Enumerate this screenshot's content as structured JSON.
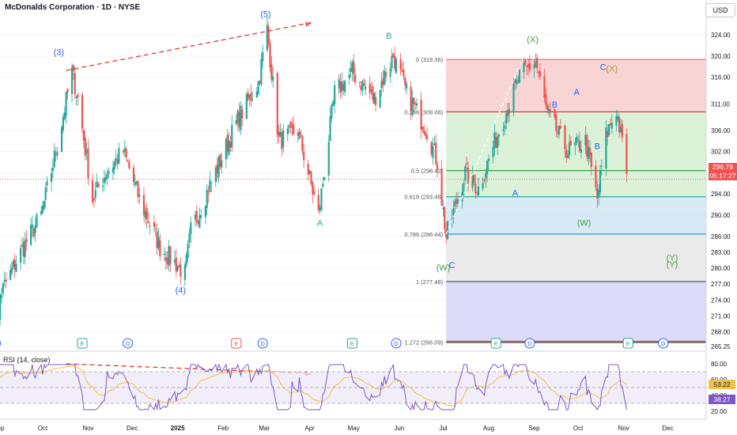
{
  "header": {
    "title": "McDonalds Corporation · 1D · NYSE",
    "currency": "USD"
  },
  "price_tag": {
    "value": "296.79",
    "countdown": "05:17:27"
  },
  "rsi": {
    "title": "RSI (14, close)",
    "value": "38.27",
    "ma_value": "53.22",
    "ticks": [
      "80.00",
      "60.00",
      "40.00",
      "20.00"
    ]
  },
  "colors": {
    "up": "#26a69a",
    "down": "#ef5350",
    "wave": "#2962ff",
    "wave_green": "#43a047",
    "fib_red": "#f7c6c6",
    "fib_green": "#cfeccb",
    "fib_blue": "#c9e3f3",
    "fib_grey": "#e3e3e3",
    "fib_purple": "#cfcff5",
    "rsi": "#7e57c2",
    "rsi_ma": "#f0c14b"
  },
  "chart_data": {
    "type": "candlestick",
    "ylim": [
      265.25,
      327
    ],
    "y_ticks": [
      "324.00",
      "320.00",
      "316.00",
      "311.00",
      "306.00",
      "302.00",
      "298.00",
      "294.00",
      "290.00",
      "286.00",
      "283.00",
      "280.00",
      "277.00",
      "274.00",
      "271.00",
      "268.00",
      "265.25"
    ],
    "x_ticks": [
      "Sep",
      "Oct",
      "Nov",
      "Dec",
      "2025",
      "Feb",
      "Mar",
      "Apr",
      "May",
      "Jun",
      "Jul",
      "Aug",
      "Sep",
      "Oct",
      "Nov",
      "Dec"
    ],
    "last_price": 296.79,
    "waypoints": [
      [
        "2024-08-26",
        263
      ],
      [
        "2024-09-02",
        275
      ],
      [
        "2024-09-16",
        283
      ],
      [
        "2024-09-30",
        290
      ],
      [
        "2024-10-10",
        302
      ],
      [
        "2024-10-21",
        317
      ],
      [
        "2024-10-25",
        312
      ],
      [
        "2024-11-04",
        293
      ],
      [
        "2024-11-13",
        298
      ],
      [
        "2024-11-25",
        302
      ],
      [
        "2024-12-06",
        293
      ],
      [
        "2024-12-20",
        284
      ],
      [
        "2025-01-06",
        279
      ],
      [
        "2025-01-10",
        287
      ],
      [
        "2025-01-22",
        295
      ],
      [
        "2025-02-11",
        308
      ],
      [
        "2025-02-25",
        315
      ],
      [
        "2025-03-03",
        325
      ],
      [
        "2025-03-11",
        304
      ],
      [
        "2025-03-24",
        306
      ],
      [
        "2025-04-07",
        290
      ],
      [
        "2025-04-18",
        313
      ],
      [
        "2025-04-30",
        317
      ],
      [
        "2025-05-15",
        312
      ],
      [
        "2025-05-28",
        320
      ],
      [
        "2025-06-06",
        313
      ],
      [
        "2025-06-20",
        306
      ],
      [
        "2025-06-27",
        300
      ],
      [
        "2025-07-03",
        286
      ],
      [
        "2025-07-16",
        298
      ],
      [
        "2025-07-25",
        295
      ],
      [
        "2025-08-08",
        306
      ],
      [
        "2025-08-22",
        316
      ],
      [
        "2025-09-02",
        319
      ],
      [
        "2025-09-10",
        309
      ],
      [
        "2025-09-24",
        302
      ],
      [
        "2025-10-06",
        304
      ],
      [
        "2025-10-14",
        293
      ],
      [
        "2025-10-20",
        305
      ],
      [
        "2025-10-27",
        310
      ],
      [
        "2025-11-04",
        296.79
      ]
    ],
    "fib_levels": [
      {
        "label": "0 (319.36)",
        "value": 319.36
      },
      {
        "label": "0.236 (309.48)",
        "value": 309.48
      },
      {
        "label": "0.5 (298.42)",
        "value": 298.42
      },
      {
        "label": "0.618 (293.48)",
        "value": 293.48
      },
      {
        "label": "0.786 (286.44)",
        "value": 286.44
      },
      {
        "label": "1 (277.48)",
        "value": 277.48
      },
      {
        "label": "1.272 (266.09)",
        "value": 266.09
      }
    ],
    "wave_labels": [
      {
        "text": "(3)",
        "date": "2024-10-12",
        "price": 320.2,
        "color": "blue"
      },
      {
        "text": "(5)",
        "date": "2025-03-02",
        "price": 327.4,
        "color": "blue"
      },
      {
        "text": "(4)",
        "date": "2025-01-03",
        "price": 275.3,
        "color": "blue"
      },
      {
        "text": "A",
        "date": "2025-04-08",
        "price": 288.0,
        "color": "teal"
      },
      {
        "text": "B",
        "date": "2025-05-25",
        "price": 323.3,
        "color": "teal"
      },
      {
        "text": "C",
        "date": "2025-07-07",
        "price": 280.0,
        "color": "blue"
      },
      {
        "text": "(W)",
        "date": "2025-07-01",
        "price": 279.6,
        "color": "green"
      },
      {
        "text": "(X)",
        "date": "2025-08-31",
        "price": 322.6,
        "color": "green"
      },
      {
        "text": "A",
        "date": "2025-08-19",
        "price": 293.7,
        "color": "blue"
      },
      {
        "text": "B",
        "date": "2025-09-15",
        "price": 310.3,
        "color": "blue"
      },
      {
        "text": "A",
        "date": "2025-09-30",
        "price": 312.7,
        "color": "blue"
      },
      {
        "text": "C",
        "date": "2025-10-18",
        "price": 317.4,
        "color": "blue"
      },
      {
        "text": "(X)",
        "date": "2025-10-24",
        "price": 317.1,
        "color": "olive"
      },
      {
        "text": "B",
        "date": "2025-10-14",
        "price": 302.5,
        "color": "blue"
      },
      {
        "text": "(W)",
        "date": "2025-10-05",
        "price": 288.0,
        "color": "green"
      },
      {
        "text": "(Y)",
        "date": "2025-12-04",
        "price": 281.4,
        "color": "green"
      },
      {
        "text": "(Y)",
        "date": "2025-12-04",
        "price": 280.2,
        "color": "green"
      }
    ],
    "events": [
      {
        "date": "2024-08-30",
        "type": "D"
      },
      {
        "date": "2024-10-28",
        "type": "E"
      },
      {
        "date": "2024-11-28",
        "type": "D"
      },
      {
        "date": "2025-02-10",
        "type": "E",
        "negative": true
      },
      {
        "date": "2025-02-28",
        "type": "D"
      },
      {
        "date": "2025-04-30",
        "type": "E"
      },
      {
        "date": "2025-05-30",
        "type": "D"
      },
      {
        "date": "2025-08-06",
        "type": "E"
      },
      {
        "date": "2025-08-29",
        "type": "D"
      },
      {
        "date": "2025-11-04",
        "type": "E"
      },
      {
        "date": "2025-11-28",
        "type": "D"
      }
    ]
  }
}
